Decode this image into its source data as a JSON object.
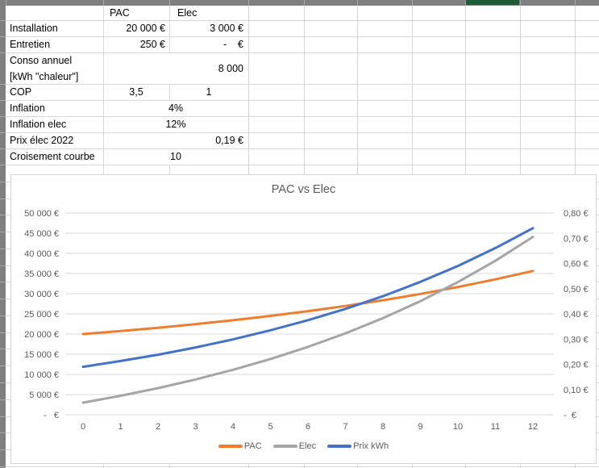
{
  "sheet": {
    "col_headers": {
      "pac": "PAC",
      "elec": "Elec"
    },
    "rows": [
      {
        "label": "Installation",
        "pac": "20 000 €",
        "elec": "3 000 €"
      },
      {
        "label": "Entretien",
        "pac": "250 €",
        "elec": "-    €"
      },
      {
        "label_line1": "Conso annuel",
        "label_line2": "[kWh \"chaleur\"]",
        "elec": "8 000"
      },
      {
        "label": "COP",
        "pac": "3,5",
        "elec": "1"
      },
      {
        "label": "Inflation",
        "value": "4%"
      },
      {
        "label": "Inflation elec",
        "value": "12%"
      },
      {
        "label": "Prix élec 2022",
        "value": "0,19 €"
      },
      {
        "label": "Croisement courbe",
        "value": "10"
      }
    ]
  },
  "chart_data": {
    "type": "line",
    "title": "PAC vs Elec",
    "x": [
      0,
      1,
      2,
      3,
      4,
      5,
      6,
      7,
      8,
      9,
      10,
      11,
      12
    ],
    "x_labels": [
      "0",
      "1",
      "2",
      "3",
      "4",
      "5",
      "6",
      "7",
      "8",
      "9",
      "10",
      "11",
      "12"
    ],
    "series": [
      {
        "name": "PAC",
        "color": "#ED7D31",
        "axis": "left",
        "values": [
          20000,
          20746,
          21562,
          22453,
          23429,
          24498,
          25672,
          26961,
          28379,
          29939,
          31658,
          33554,
          35646
        ]
      },
      {
        "name": "Elec",
        "color": "#A5A5A5",
        "axis": "left",
        "values": [
          3000,
          4702,
          6609,
          8744,
          11136,
          13815,
          16815,
          20175,
          23938,
          28153,
          32874,
          38161,
          44083
        ]
      },
      {
        "name": "Prix kWh",
        "color": "#4472C4",
        "axis": "right",
        "values": [
          0.19,
          0.213,
          0.238,
          0.267,
          0.299,
          0.335,
          0.375,
          0.42,
          0.47,
          0.527,
          0.59,
          0.661,
          0.74
        ]
      }
    ],
    "left_axis": {
      "min": 0,
      "max": 50000,
      "step": 5000,
      "labels": [
        "-   €",
        "5 000 €",
        "10 000 €",
        "15 000 €",
        "20 000 €",
        "25 000 €",
        "30 000 €",
        "35 000 €",
        "40 000 €",
        "45 000 €",
        "50 000 €"
      ]
    },
    "right_axis": {
      "min": 0,
      "max": 0.8,
      "step": 0.1,
      "labels": [
        "-  €",
        "0,10 €",
        "0,20 €",
        "0,30 €",
        "0,40 €",
        "0,50 €",
        "0,60 €",
        "0,70 €",
        "0,80 €"
      ]
    },
    "grid": true,
    "legend_position": "bottom",
    "colors": {
      "grid": "#d9d9d9",
      "axis_text": "#595959",
      "title_text": "#595959"
    }
  }
}
